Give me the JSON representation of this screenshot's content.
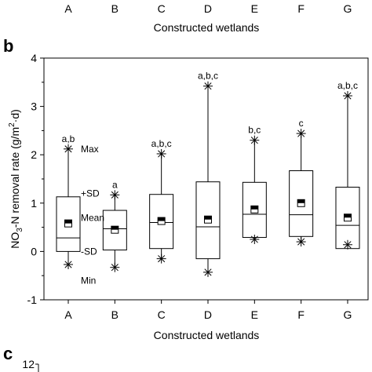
{
  "top_strip": {
    "categories": [
      "A",
      "B",
      "C",
      "D",
      "E",
      "F",
      "G"
    ],
    "xlabel": "Constructed wetlands"
  },
  "panel_b": {
    "label": "b"
  },
  "panel_c": {
    "label": "c",
    "first_tick": "12"
  },
  "chart_data": {
    "type": "box",
    "xlabel": "Constructed wetlands",
    "ylabel": "NO3-N removal rate (g/m2·d)",
    "ylabel_parts": {
      "main": "NO",
      "sub": "3",
      "mid": "-N removal rate (g/m",
      "sup": "2",
      "end": "·d)"
    },
    "ylim": [
      -1,
      4
    ],
    "yticks": [
      -1,
      0,
      1,
      2,
      3,
      4
    ],
    "categories": [
      "A",
      "B",
      "C",
      "D",
      "E",
      "F",
      "G"
    ],
    "boxes": [
      {
        "cat": "A",
        "min": -0.27,
        "max": 2.12,
        "lower": 0.0,
        "upper": 1.13,
        "median": 0.28,
        "mean": 0.58,
        "letters": "a,b"
      },
      {
        "cat": "B",
        "min": -0.33,
        "max": 1.17,
        "lower": 0.03,
        "upper": 0.85,
        "median": 0.47,
        "mean": 0.45,
        "letters": "a"
      },
      {
        "cat": "C",
        "min": -0.15,
        "max": 2.02,
        "lower": 0.06,
        "upper": 1.18,
        "median": 0.6,
        "mean": 0.63,
        "letters": "a,b,c"
      },
      {
        "cat": "D",
        "min": -0.43,
        "max": 3.42,
        "lower": -0.15,
        "upper": 1.44,
        "median": 0.51,
        "mean": 0.66,
        "letters": "a,b,c"
      },
      {
        "cat": "E",
        "min": 0.25,
        "max": 2.3,
        "lower": 0.29,
        "upper": 1.43,
        "median": 0.77,
        "mean": 0.87,
        "letters": "b,c"
      },
      {
        "cat": "F",
        "min": 0.2,
        "max": 2.44,
        "lower": 0.31,
        "upper": 1.67,
        "median": 0.76,
        "mean": 1.0,
        "letters": "c"
      },
      {
        "cat": "G",
        "min": 0.14,
        "max": 3.22,
        "lower": 0.06,
        "upper": 1.33,
        "median": 0.54,
        "mean": 0.7,
        "letters": "a,b,c"
      }
    ],
    "legend_annotations": [
      "Max",
      "+SD",
      "Mean",
      "-SD",
      "Min"
    ],
    "legend_placement": "right of box A"
  }
}
